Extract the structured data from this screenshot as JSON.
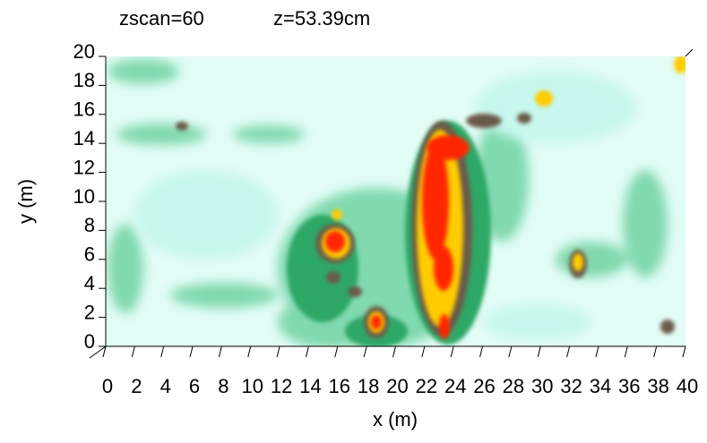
{
  "chart_data": {
    "type": "heatmap",
    "annotations": [
      "zscan=60",
      "z=53.39cm"
    ],
    "x_label": "x (m)",
    "y_label": "y (m)",
    "xlim": [
      0,
      40
    ],
    "ylim": [
      0,
      20
    ],
    "xticks": [
      0,
      2,
      4,
      6,
      8,
      10,
      12,
      14,
      16,
      18,
      20,
      22,
      24,
      26,
      28,
      30,
      32,
      34,
      36,
      38,
      40
    ],
    "yticks": [
      0,
      2,
      4,
      6,
      8,
      10,
      12,
      14,
      16,
      18,
      20
    ]
  }
}
